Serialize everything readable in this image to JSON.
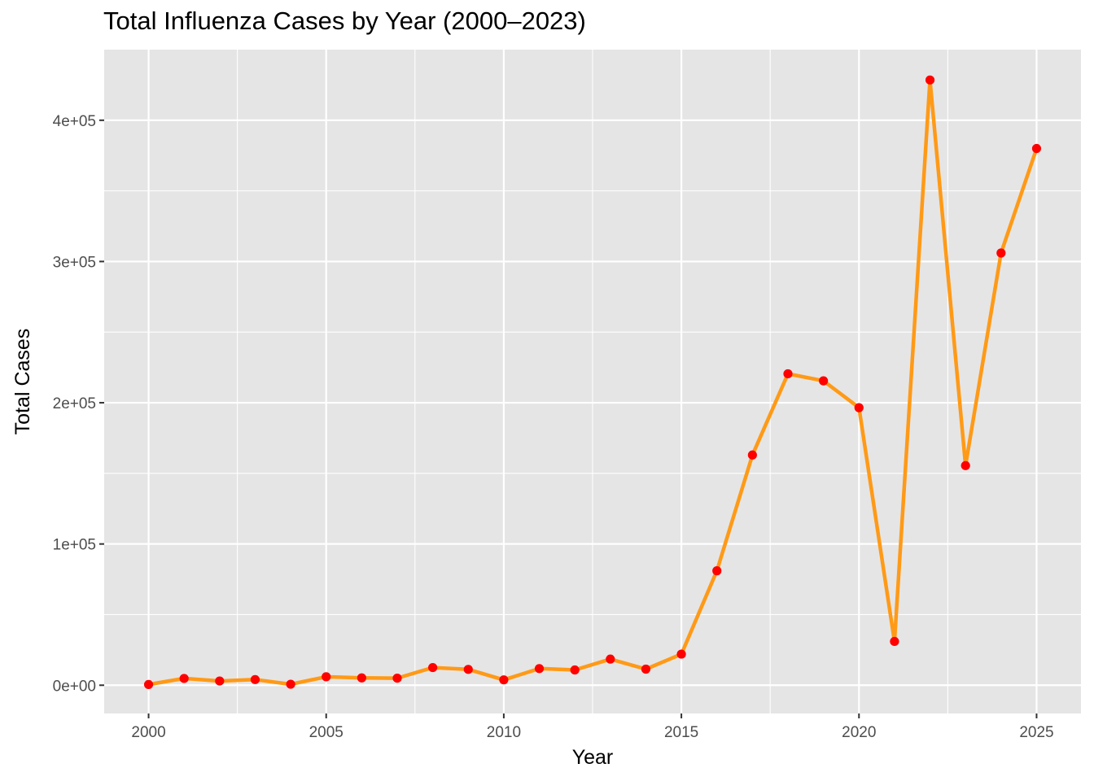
{
  "chart_data": {
    "type": "line",
    "title": "Total Influenza Cases by Year (2000–2023)",
    "xlabel": "Year",
    "ylabel": "Total Cases",
    "xlim": [
      1998.75,
      2026.25
    ],
    "ylim": [
      -20000,
      450000
    ],
    "x_ticks": [
      2000,
      2005,
      2010,
      2015,
      2020,
      2025
    ],
    "x_tick_labels": [
      "2000",
      "2005",
      "2010",
      "2015",
      "2020",
      "2025"
    ],
    "y_ticks": [
      0,
      100000,
      200000,
      300000,
      400000
    ],
    "y_tick_labels": [
      "0e+00",
      "1e+05",
      "2e+05",
      "3e+05",
      "4e+05"
    ],
    "grid": true,
    "legend": "none",
    "colors": {
      "panel": "#e5e5e5",
      "grid": "#ffffff",
      "line": "#ff9a17",
      "point": "#ff0000"
    },
    "series": [
      {
        "x": [
          2000,
          2001,
          2002,
          2003,
          2004,
          2005,
          2006,
          2007,
          2008,
          2009,
          2010,
          2011,
          2012,
          2013,
          2014,
          2015,
          2016,
          2017,
          2018,
          2019,
          2020,
          2021,
          2022,
          2023,
          2024,
          2025
        ],
        "values": [
          500,
          4800,
          3000,
          4000,
          700,
          6000,
          5200,
          5000,
          12500,
          11200,
          3800,
          11800,
          10800,
          18500,
          11400,
          22000,
          81000,
          163000,
          220500,
          215500,
          196500,
          31000,
          428500,
          155500,
          306000,
          380000
        ]
      }
    ]
  }
}
